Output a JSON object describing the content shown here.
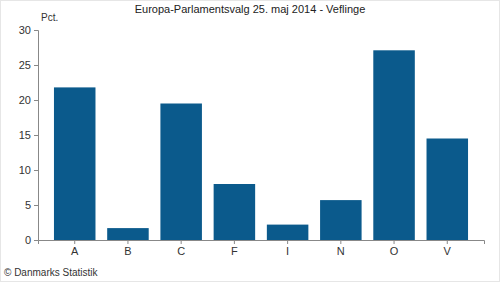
{
  "chart_data": {
    "type": "bar",
    "title": "Europa-Parlamentsvalg 25. maj 2014 - Veflinge",
    "ylabel": "Pct.",
    "source": "© Danmarks Statistik",
    "categories": [
      "A",
      "B",
      "C",
      "F",
      "I",
      "N",
      "O",
      "V"
    ],
    "values": [
      21.8,
      1.7,
      19.5,
      8.0,
      2.2,
      5.7,
      27.1,
      14.5
    ],
    "color": "#0b5a8c",
    "ylim": [
      0,
      30
    ],
    "yticks": [
      0,
      5,
      10,
      15,
      20,
      25,
      30
    ],
    "grid": false
  }
}
